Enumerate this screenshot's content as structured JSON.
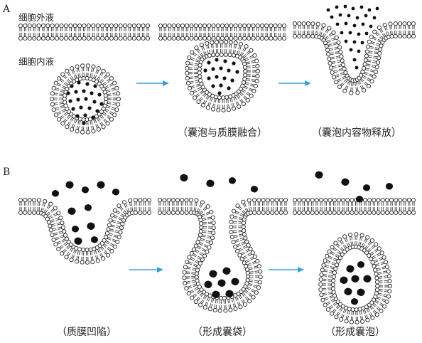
{
  "panels": {
    "a": {
      "letter": "A",
      "extracellular_label": "细胞外液",
      "intracellular_label": "细胞内液",
      "captions": [
        "（囊泡与质膜融合）",
        "（囊泡内容物释放）"
      ]
    },
    "b": {
      "letter": "B",
      "captions": [
        "（质膜凹陷）",
        "（形成囊袋）",
        "（形成囊泡）"
      ]
    }
  },
  "colors": {
    "membrane_stroke": "#222222",
    "lipid_head_fill": "#ffffff",
    "cargo": "#111111",
    "arrow": "#3aa0d8"
  }
}
